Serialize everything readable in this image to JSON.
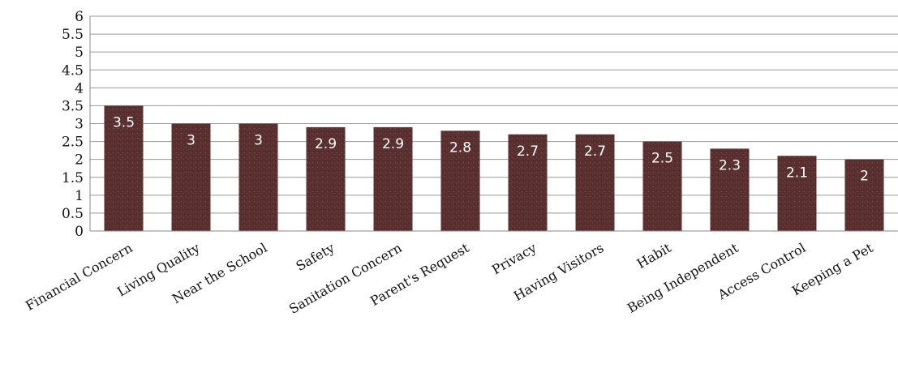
{
  "chart_data": {
    "type": "bar",
    "categories": [
      "Financial Concern",
      "Living Quality",
      "Near the School",
      "Safety",
      "Sanitation Concern",
      "Parent's Request",
      "Privacy",
      "Having Visitors",
      "Habit",
      "Being Independent",
      "Access Control",
      "Keeping a Pet"
    ],
    "values": [
      3.5,
      3,
      3,
      2.9,
      2.9,
      2.8,
      2.7,
      2.7,
      2.5,
      2.3,
      2.1,
      2
    ],
    "data_labels": [
      "3.5",
      "3",
      "3",
      "2.9",
      "2.9",
      "2.8",
      "2.7",
      "2.7",
      "2.5",
      "2.3",
      "2.1",
      "2"
    ],
    "y_ticks": [
      "0",
      "0.5",
      "1",
      "1.5",
      "2",
      "2.5",
      "3",
      "3.5",
      "4",
      "4.5",
      "5",
      "5.5",
      "6"
    ],
    "ylim": [
      0,
      6
    ],
    "title": "",
    "xlabel": "",
    "ylabel": "",
    "grid": true,
    "bar_color": "#5a2f2f",
    "label_color": "#ffffff"
  }
}
